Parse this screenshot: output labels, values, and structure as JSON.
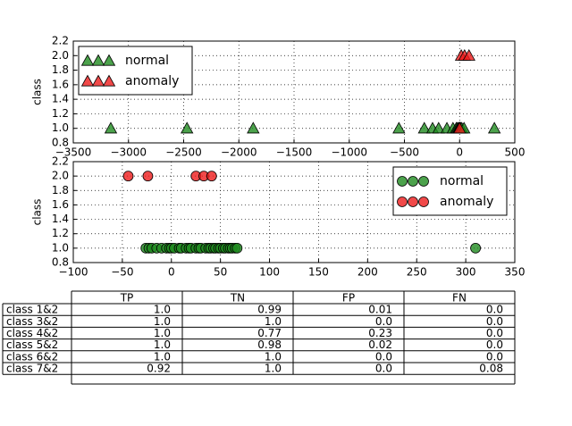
{
  "chart_data": [
    {
      "type": "scatter",
      "y_label": "class",
      "grid": true,
      "legend": "upper left",
      "xlim": [
        -3500,
        500
      ],
      "xticks": [
        {
          "value": -3500,
          "label": "−3500"
        },
        {
          "value": -3000,
          "label": "−3000"
        },
        {
          "value": -2500,
          "label": "−2500"
        },
        {
          "value": -2000,
          "label": "−2000"
        },
        {
          "value": -1500,
          "label": "−1500"
        },
        {
          "value": -1000,
          "label": "−1000"
        },
        {
          "value": -500,
          "label": "−500"
        },
        0,
        500
      ],
      "ylim": [
        0.8,
        2.2
      ],
      "yticks": [
        0.8,
        {
          "value": 1,
          "label": "1.0"
        },
        1.2,
        1.4,
        1.6,
        1.8,
        {
          "value": 2,
          "label": "2.0"
        },
        2.2
      ],
      "series": [
        {
          "name": "normal",
          "color": "#1f8b1f",
          "marker": "triangle",
          "x": [
            -3160,
            -2470,
            -1870,
            -550,
            -320,
            -245,
            -190,
            -115,
            -60,
            -30,
            -20,
            -10,
            -5,
            0,
            5,
            10,
            20,
            40,
            315
          ],
          "values": [
            1,
            1,
            1,
            1,
            1,
            1,
            1,
            1,
            1,
            1,
            1,
            1,
            1,
            1,
            1,
            1,
            1,
            1,
            1
          ]
        },
        {
          "name": "anomaly",
          "color": "#ee1c1c",
          "marker": "triangle",
          "x": [
            15,
            45,
            85,
            0
          ],
          "values": [
            2,
            2,
            2,
            1
          ]
        }
      ]
    },
    {
      "type": "scatter",
      "y_label": "class",
      "grid": true,
      "legend": "upper right",
      "xlim": [
        -100,
        350
      ],
      "xticks": [
        {
          "value": -100,
          "label": "−100"
        },
        {
          "value": -50,
          "label": "−50"
        },
        0,
        50,
        100,
        150,
        200,
        250,
        300,
        350
      ],
      "ylim": [
        0.8,
        2.2
      ],
      "yticks": [
        0.8,
        {
          "value": 1,
          "label": "1.0"
        },
        1.2,
        1.4,
        1.6,
        1.8,
        {
          "value": 2,
          "label": "2.0"
        },
        2.2
      ],
      "series": [
        {
          "name": "normal",
          "color": "#1f8b1f",
          "marker": "circle",
          "x": [
            -26,
            -23,
            -20,
            -15,
            -10,
            -5,
            -2,
            0,
            3,
            8,
            10,
            15,
            18,
            20,
            25,
            28,
            30,
            35,
            38,
            40,
            43,
            45,
            48,
            50,
            53,
            55,
            58,
            60,
            62,
            65,
            67,
            310
          ],
          "values": [
            1,
            1,
            1,
            1,
            1,
            1,
            1,
            1,
            1,
            1,
            1,
            1,
            1,
            1,
            1,
            1,
            1,
            1,
            1,
            1,
            1,
            1,
            1,
            1,
            1,
            1,
            1,
            1,
            1,
            1,
            1,
            1
          ]
        },
        {
          "name": "anomaly",
          "color": "#ee1c1c",
          "marker": "circle",
          "x": [
            -44,
            -24,
            25,
            33,
            41
          ],
          "values": [
            2,
            2,
            2,
            2,
            2
          ]
        }
      ]
    }
  ],
  "table": {
    "columns": [
      "TP",
      "TN",
      "FP",
      "FN"
    ],
    "rows": [
      {
        "label": "class 1&2",
        "cells": [
          "1.0",
          "0.99",
          "0.01",
          "0.0"
        ]
      },
      {
        "label": "class 3&2",
        "cells": [
          "1.0",
          "1.0",
          "0.0",
          "0.0"
        ]
      },
      {
        "label": "class 4&2",
        "cells": [
          "1.0",
          "0.77",
          "0.23",
          "0.0"
        ]
      },
      {
        "label": "class 5&2",
        "cells": [
          "1.0",
          "0.98",
          "0.02",
          "0.0"
        ]
      },
      {
        "label": "class 6&2",
        "cells": [
          "1.0",
          "1.0",
          "0.0",
          "0.0"
        ]
      },
      {
        "label": "class 7&2",
        "cells": [
          "0.92",
          "1.0",
          "0.0",
          "0.08"
        ]
      }
    ]
  }
}
